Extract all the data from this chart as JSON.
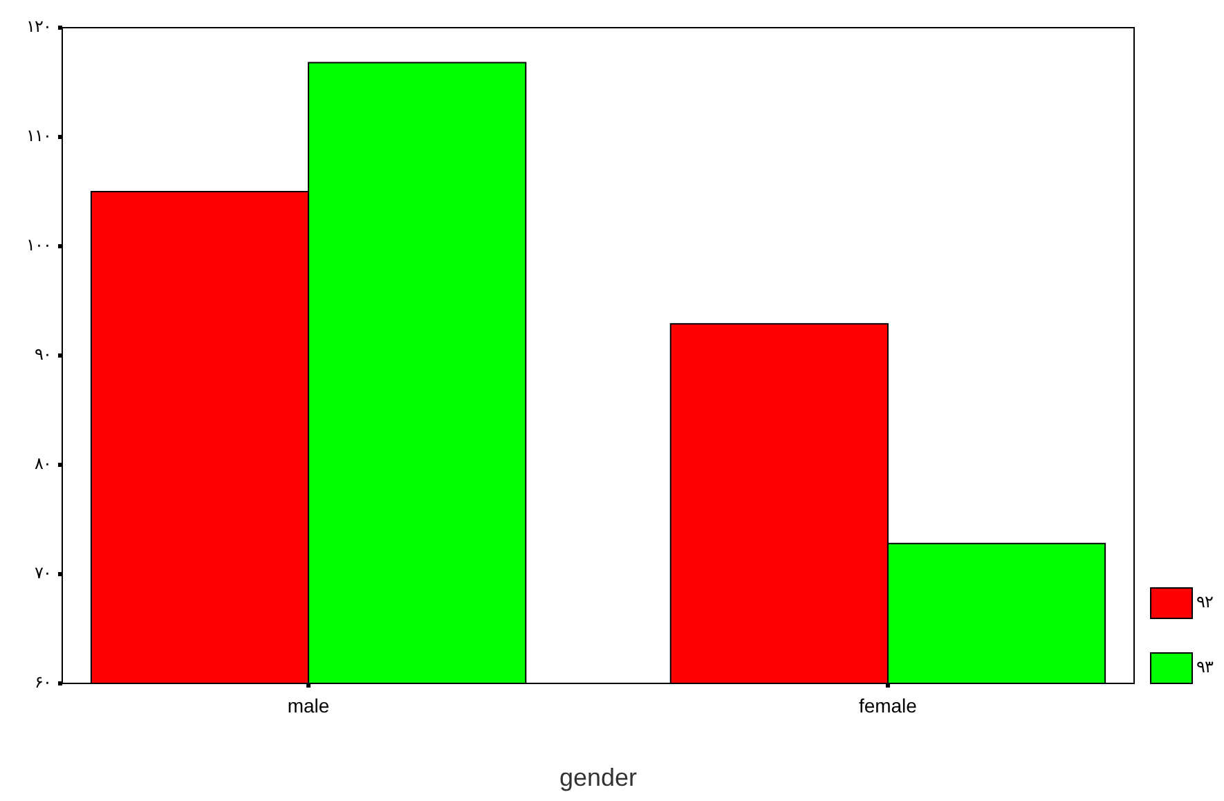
{
  "chart_data": {
    "type": "bar",
    "xlabel": "gender",
    "categories": [
      "male",
      "female"
    ],
    "series": [
      {
        "name": "۹۲",
        "color": "#ff0000",
        "values": [
          105,
          92.9
        ]
      },
      {
        "name": "۹۳",
        "color": "#00ff00",
        "values": [
          116.8,
          72.8
        ]
      }
    ],
    "ylim": [
      60,
      120
    ],
    "yticks": [
      {
        "value": 60,
        "label": "۶۰"
      },
      {
        "value": 70,
        "label": "۷۰"
      },
      {
        "value": 80,
        "label": "۸۰"
      },
      {
        "value": 90,
        "label": "۹۰"
      },
      {
        "value": 100,
        "label": "۱۰۰"
      },
      {
        "value": 110,
        "label": "۱۱۰"
      },
      {
        "value": 120,
        "label": "۱۲۰"
      }
    ],
    "grid": false,
    "legend": "right"
  }
}
